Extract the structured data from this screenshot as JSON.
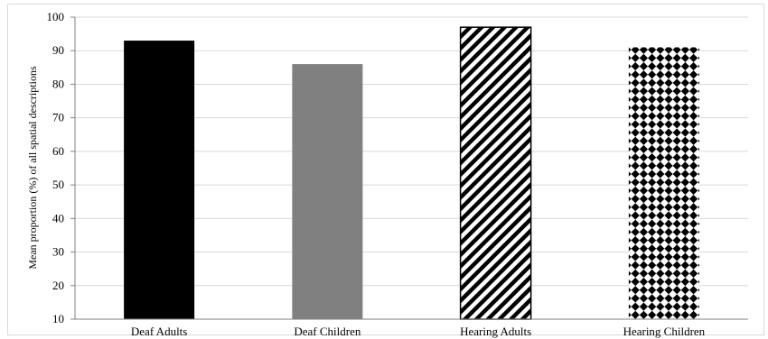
{
  "chart_data": {
    "type": "bar",
    "title": "",
    "xlabel": "",
    "ylabel": "Mean proportion  (%) of all spatial descriptions",
    "categories": [
      "Deaf Adults",
      "Deaf Children",
      "Hearing Adults",
      "Hearing Children"
    ],
    "values": [
      93,
      86,
      97,
      91
    ],
    "bar_styles": [
      "solid-black",
      "solid-gray",
      "diagonal-stripes",
      "diamond-checker"
    ],
    "ylim": [
      10,
      100
    ],
    "yticks": [
      "10",
      "20",
      "30",
      "40",
      "50",
      "60",
      "70",
      "80",
      "90",
      "100"
    ],
    "grid": true,
    "legend": "none",
    "colors": {
      "black": "#000000",
      "gray": "#808080",
      "grid": "#d9d9d9"
    }
  }
}
